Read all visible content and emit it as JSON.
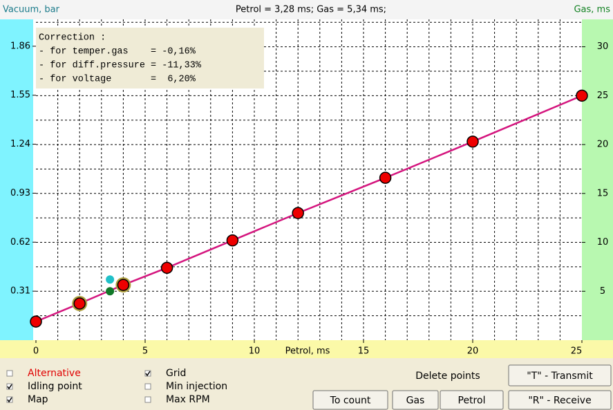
{
  "header": {
    "left_axis_title": "Vacuum, bar",
    "status": "Petrol = 3,28 ms; Gas = 5,34 ms;",
    "right_axis_title": "Gas, ms"
  },
  "chart": {
    "type": "line",
    "x_label": "Petrol, ms",
    "xlim": [
      0,
      25
    ],
    "xticks": [
      0,
      5,
      10,
      15,
      20,
      25
    ],
    "ylim": [
      0,
      32.8
    ],
    "yticks": [
      5,
      10,
      15,
      20,
      25,
      30
    ],
    "y2lim": [
      0,
      2.03
    ],
    "y2ticks": [
      0.31,
      0.62,
      0.93,
      1.24,
      1.55,
      1.86
    ],
    "grid": true,
    "xgrid": [
      1,
      2,
      3,
      4,
      5,
      6,
      7,
      8,
      9,
      10,
      11,
      12,
      13,
      14,
      15,
      16,
      17,
      18,
      19,
      20,
      21,
      22,
      23,
      24
    ],
    "ygrid": [
      2.5,
      5,
      7.5,
      10,
      12.5,
      15,
      17.5,
      20,
      22.5,
      25,
      27.5,
      30,
      32.5
    ],
    "line_color": "#d4157e",
    "point_color": "#ee0000",
    "highlight_color": "#b0a040",
    "x": [
      0,
      2,
      4,
      6,
      9,
      12,
      16,
      20,
      25
    ],
    "values": [
      1.9,
      3.75,
      5.65,
      7.4,
      10.2,
      13.0,
      16.6,
      20.3,
      25.0
    ],
    "highlighted": [
      false,
      true,
      true,
      false,
      false,
      false,
      false,
      false,
      false
    ],
    "markers": [
      {
        "x": 3.39,
        "y": 6.2,
        "color": "#20c0c8"
      },
      {
        "x": 3.39,
        "y": 5.0,
        "color": "#107828"
      }
    ]
  },
  "correction": {
    "title": "Correction :",
    "lines": [
      "- for temper.gas    = -0,16%",
      "- for diff.pressure = -11,33%",
      "- for voltage       =  6,20%"
    ]
  },
  "controls": {
    "checkboxes": [
      {
        "label": "Alternative",
        "checked": false,
        "color": "#e00000"
      },
      {
        "label": "Idling point",
        "checked": true,
        "color": "#000000"
      },
      {
        "label": "Map",
        "checked": true,
        "color": "#000000"
      },
      {
        "label": "Grid",
        "checked": true,
        "color": "#000000"
      },
      {
        "label": "Min injection",
        "checked": false,
        "color": "#000000"
      },
      {
        "label": "Max RPM",
        "checked": false,
        "color": "#000000"
      }
    ],
    "delete_label": "Delete points",
    "buttons": [
      "To count",
      "Gas",
      "Petrol",
      "\"T\" - Transmit",
      "\"R\" - Receive"
    ]
  }
}
